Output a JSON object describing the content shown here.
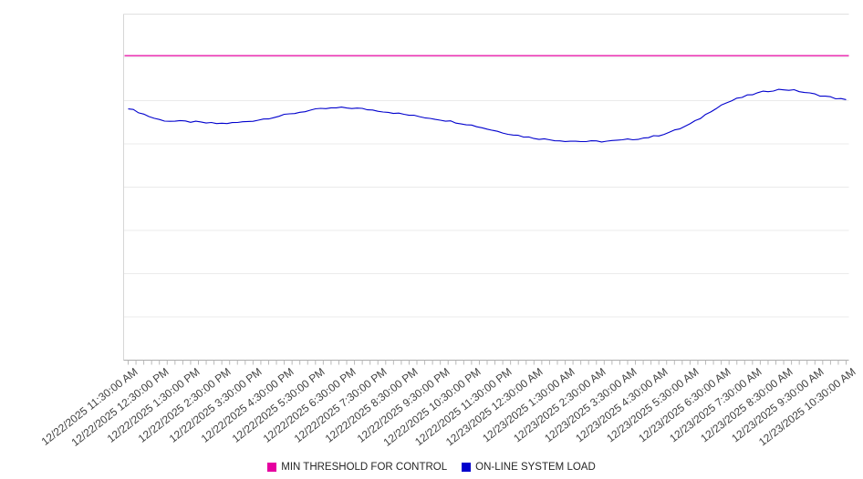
{
  "chart_data": {
    "type": "line",
    "title": "",
    "categories": [
      "12/22/2025 11:30:00 AM",
      "12/22/2025 12:30:00 PM",
      "12/22/2025 1:30:00 PM",
      "12/22/2025 2:30:00 PM",
      "12/22/2025 3:30:00 PM",
      "12/22/2025 4:30:00 PM",
      "12/22/2025 5:30:00 PM",
      "12/22/2025 6:30:00 PM",
      "12/22/2025 7:30:00 PM",
      "12/22/2025 8:30:00 PM",
      "12/22/2025 9:30:00 PM",
      "12/22/2025 10:30:00 PM",
      "12/22/2025 11:30:00 PM",
      "12/23/2025 12:30:00 AM",
      "12/23/2025 1:30:00 AM",
      "12/23/2025 2:30:00 AM",
      "12/23/2025 3:30:00 AM",
      "12/23/2025 4:30:00 AM",
      "12/23/2025 5:30:00 AM",
      "12/23/2025 6:30:00 AM",
      "12/23/2025 7:30:00 AM",
      "12/23/2025 8:30:00 AM",
      "12/23/2025 9:30:00 AM",
      "12/23/2025 10:30:00 AM"
    ],
    "series": [
      {
        "name": "MIN THRESHOLD FOR CONTROL",
        "color": "#e600a0",
        "constant": 88
      },
      {
        "name": "ON-LINE SYSTEM LOAD",
        "color": "#0000cd",
        "values": [
          72.6,
          69.5,
          68.9,
          68.4,
          69.2,
          70.8,
          72.4,
          72.9,
          72.1,
          70.8,
          69.5,
          67.9,
          65.8,
          64.2,
          63.4,
          63.2,
          63.7,
          65.0,
          68.2,
          73.7,
          76.8,
          78.2,
          76.8,
          75.3
        ]
      }
    ],
    "ylim": [
      0,
      100
    ],
    "grid": true,
    "legend_position": "bottom",
    "x_tick_rotation": -38
  }
}
